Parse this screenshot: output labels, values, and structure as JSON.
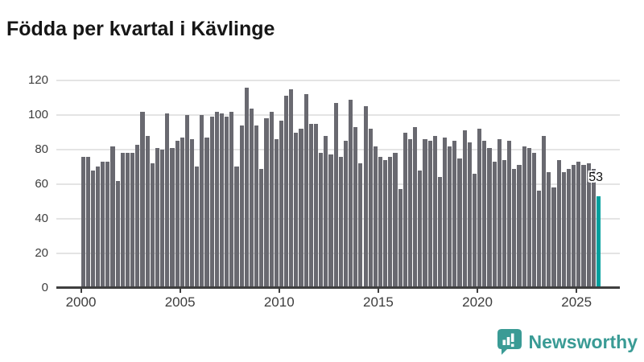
{
  "header": {
    "title": "Födda per kvartal i Kävlinge"
  },
  "annotation": {
    "value": "53"
  },
  "footer": {
    "brand": "Newsworthy"
  },
  "colors": {
    "bar": "#696970",
    "highlight": "#00a09e",
    "axis": "#3f3f3f",
    "grid": "#e4e4e4",
    "tick_label": "#3d3d3d",
    "title": "#161616",
    "logo": "#3a9b95"
  },
  "chart_data": {
    "type": "bar",
    "title": "Födda per kvartal i Kävlinge",
    "x_unit": "quarter",
    "x_tick_labels": [
      "2000",
      "2005",
      "2010",
      "2015",
      "2020",
      "2025"
    ],
    "y_ticks": [
      0,
      20,
      40,
      60,
      80,
      100,
      120
    ],
    "ylim": [
      0,
      120
    ],
    "grid": "horizontal",
    "legend": "none",
    "series": [
      {
        "year": 2000,
        "values": [
          76,
          76,
          68,
          70
        ]
      },
      {
        "year": 2001,
        "values": [
          73,
          73,
          82,
          62
        ]
      },
      {
        "year": 2002,
        "values": [
          78,
          78,
          78,
          83
        ]
      },
      {
        "year": 2003,
        "values": [
          102,
          88,
          72,
          81
        ]
      },
      {
        "year": 2004,
        "values": [
          80,
          101,
          81,
          85
        ]
      },
      {
        "year": 2005,
        "values": [
          87,
          100,
          86,
          70
        ]
      },
      {
        "year": 2006,
        "values": [
          100,
          87,
          99,
          102
        ]
      },
      {
        "year": 2007,
        "values": [
          101,
          99,
          102,
          70
        ]
      },
      {
        "year": 2008,
        "values": [
          94,
          116,
          104,
          94
        ]
      },
      {
        "year": 2009,
        "values": [
          69,
          98,
          102,
          86
        ]
      },
      {
        "year": 2010,
        "values": [
          97,
          111,
          115,
          90
        ]
      },
      {
        "year": 2011,
        "values": [
          92,
          112,
          95,
          95
        ]
      },
      {
        "year": 2012,
        "values": [
          78,
          88,
          77,
          107
        ]
      },
      {
        "year": 2013,
        "values": [
          76,
          85,
          109,
          93
        ]
      },
      {
        "year": 2014,
        "values": [
          72,
          105,
          92,
          82
        ]
      },
      {
        "year": 2015,
        "values": [
          76,
          74,
          76,
          78
        ]
      },
      {
        "year": 2016,
        "values": [
          57,
          90,
          86,
          93
        ]
      },
      {
        "year": 2017,
        "values": [
          68,
          86,
          85,
          88
        ]
      },
      {
        "year": 2018,
        "values": [
          64,
          87,
          82,
          85
        ]
      },
      {
        "year": 2019,
        "values": [
          75,
          91,
          84,
          66
        ]
      },
      {
        "year": 2020,
        "values": [
          92,
          85,
          81,
          73
        ]
      },
      {
        "year": 2021,
        "values": [
          86,
          74,
          85,
          69
        ]
      },
      {
        "year": 2022,
        "values": [
          71,
          82,
          81,
          78
        ]
      },
      {
        "year": 2023,
        "values": [
          56,
          88,
          67,
          58
        ]
      },
      {
        "year": 2024,
        "values": [
          74,
          67,
          69,
          71
        ]
      },
      {
        "year": 2025,
        "values": [
          73,
          71,
          72,
          69
        ]
      },
      {
        "year": 2026,
        "values": [
          53
        ]
      }
    ],
    "highlight": {
      "year": 2026,
      "quarter": "Q1",
      "value": 53,
      "label": "53"
    }
  }
}
